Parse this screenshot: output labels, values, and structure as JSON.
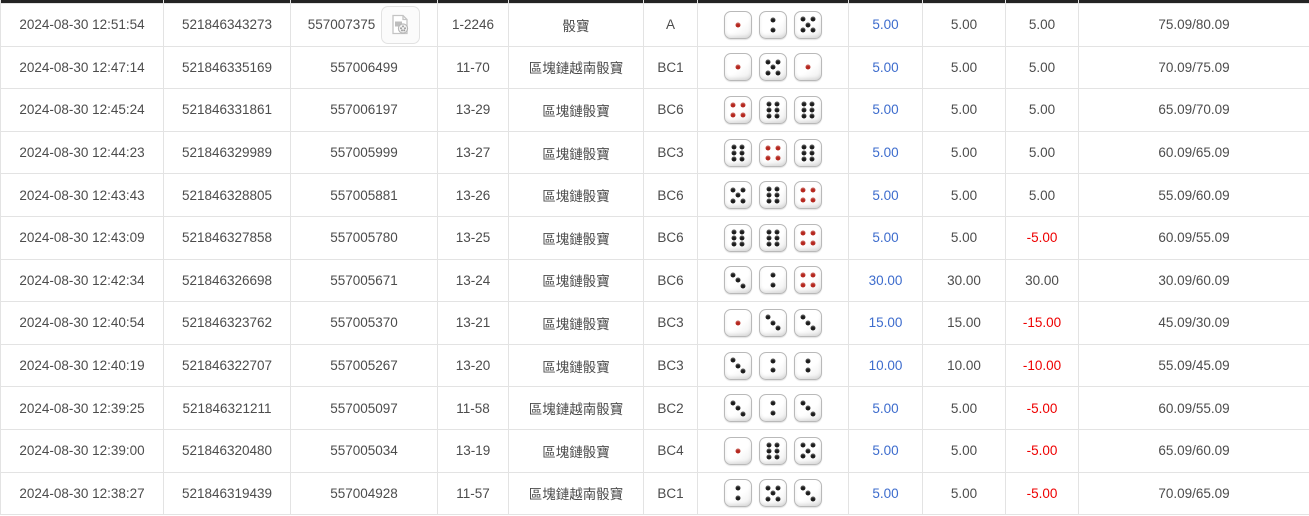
{
  "colors": {
    "amount_blue": "#3d6ccd",
    "negative_red": "#ee0000",
    "text_gray": "#4c4c4c",
    "header_strip_dark": "#242424",
    "grid_border": "#e3e3e3",
    "pip_black": "#1c1c1c",
    "pip_red": "#b5271e",
    "die_border": "#b9b9b9"
  },
  "icons": {
    "video_replay_icon": "video-file-with-film-reel"
  },
  "dice_red_faces": [
    1,
    4
  ],
  "table": {
    "rows": [
      {
        "time": "2024-08-30 12:51:54",
        "bet_id": "521846343273",
        "serial": "557007375",
        "has_video": true,
        "round": "1-2246",
        "game": "骰寶",
        "bet_type": "A",
        "dice": [
          1,
          2,
          5
        ],
        "bet_amount": "5.00",
        "valid_amount": "5.00",
        "win_loss": "5.00",
        "balance": "75.09/80.09"
      },
      {
        "time": "2024-08-30 12:47:14",
        "bet_id": "521846335169",
        "serial": "557006499",
        "has_video": false,
        "round": "11-70",
        "game": "區塊鏈越南骰寶",
        "bet_type": "BC1",
        "dice": [
          1,
          5,
          1
        ],
        "bet_amount": "5.00",
        "valid_amount": "5.00",
        "win_loss": "5.00",
        "balance": "70.09/75.09"
      },
      {
        "time": "2024-08-30 12:45:24",
        "bet_id": "521846331861",
        "serial": "557006197",
        "has_video": false,
        "round": "13-29",
        "game": "區塊鏈骰寶",
        "bet_type": "BC6",
        "dice": [
          4,
          6,
          6
        ],
        "bet_amount": "5.00",
        "valid_amount": "5.00",
        "win_loss": "5.00",
        "balance": "65.09/70.09"
      },
      {
        "time": "2024-08-30 12:44:23",
        "bet_id": "521846329989",
        "serial": "557005999",
        "has_video": false,
        "round": "13-27",
        "game": "區塊鏈骰寶",
        "bet_type": "BC3",
        "dice": [
          6,
          4,
          6
        ],
        "bet_amount": "5.00",
        "valid_amount": "5.00",
        "win_loss": "5.00",
        "balance": "60.09/65.09"
      },
      {
        "time": "2024-08-30 12:43:43",
        "bet_id": "521846328805",
        "serial": "557005881",
        "has_video": false,
        "round": "13-26",
        "game": "區塊鏈骰寶",
        "bet_type": "BC6",
        "dice": [
          5,
          6,
          4
        ],
        "bet_amount": "5.00",
        "valid_amount": "5.00",
        "win_loss": "5.00",
        "balance": "55.09/60.09"
      },
      {
        "time": "2024-08-30 12:43:09",
        "bet_id": "521846327858",
        "serial": "557005780",
        "has_video": false,
        "round": "13-25",
        "game": "區塊鏈骰寶",
        "bet_type": "BC6",
        "dice": [
          6,
          6,
          4
        ],
        "bet_amount": "5.00",
        "valid_amount": "5.00",
        "win_loss": "-5.00",
        "balance": "60.09/55.09"
      },
      {
        "time": "2024-08-30 12:42:34",
        "bet_id": "521846326698",
        "serial": "557005671",
        "has_video": false,
        "round": "13-24",
        "game": "區塊鏈骰寶",
        "bet_type": "BC6",
        "dice": [
          3,
          2,
          4
        ],
        "bet_amount": "30.00",
        "valid_amount": "30.00",
        "win_loss": "30.00",
        "balance": "30.09/60.09"
      },
      {
        "time": "2024-08-30 12:40:54",
        "bet_id": "521846323762",
        "serial": "557005370",
        "has_video": false,
        "round": "13-21",
        "game": "區塊鏈骰寶",
        "bet_type": "BC3",
        "dice": [
          1,
          3,
          3
        ],
        "bet_amount": "15.00",
        "valid_amount": "15.00",
        "win_loss": "-15.00",
        "balance": "45.09/30.09"
      },
      {
        "time": "2024-08-30 12:40:19",
        "bet_id": "521846322707",
        "serial": "557005267",
        "has_video": false,
        "round": "13-20",
        "game": "區塊鏈骰寶",
        "bet_type": "BC3",
        "dice": [
          3,
          2,
          2
        ],
        "bet_amount": "10.00",
        "valid_amount": "10.00",
        "win_loss": "-10.00",
        "balance": "55.09/45.09"
      },
      {
        "time": "2024-08-30 12:39:25",
        "bet_id": "521846321211",
        "serial": "557005097",
        "has_video": false,
        "round": "11-58",
        "game": "區塊鏈越南骰寶",
        "bet_type": "BC2",
        "dice": [
          3,
          2,
          3
        ],
        "bet_amount": "5.00",
        "valid_amount": "5.00",
        "win_loss": "-5.00",
        "balance": "60.09/55.09"
      },
      {
        "time": "2024-08-30 12:39:00",
        "bet_id": "521846320480",
        "serial": "557005034",
        "has_video": false,
        "round": "13-19",
        "game": "區塊鏈骰寶",
        "bet_type": "BC4",
        "dice": [
          1,
          6,
          5
        ],
        "bet_amount": "5.00",
        "valid_amount": "5.00",
        "win_loss": "-5.00",
        "balance": "65.09/60.09"
      },
      {
        "time": "2024-08-30 12:38:27",
        "bet_id": "521846319439",
        "serial": "557004928",
        "has_video": false,
        "round": "11-57",
        "game": "區塊鏈越南骰寶",
        "bet_type": "BC1",
        "dice": [
          2,
          5,
          3
        ],
        "bet_amount": "5.00",
        "valid_amount": "5.00",
        "win_loss": "-5.00",
        "balance": "70.09/65.09"
      }
    ]
  }
}
